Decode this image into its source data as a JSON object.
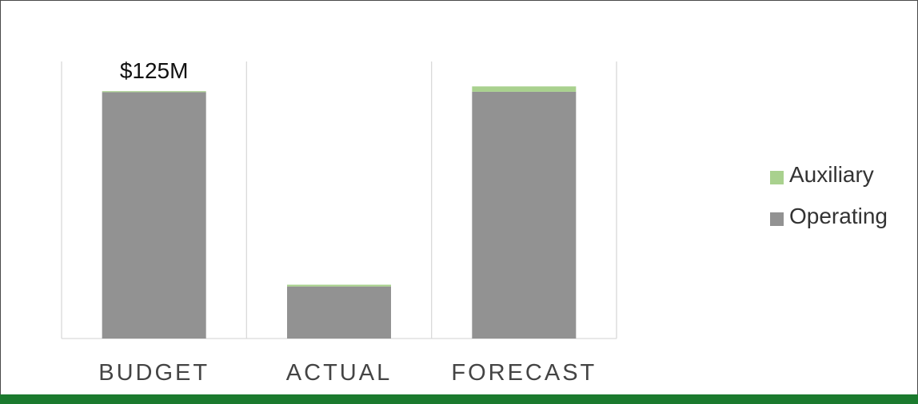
{
  "chart_data": {
    "type": "bar",
    "stacked": true,
    "categories": [
      "BUDGET",
      "ACTUAL",
      "FORECAST"
    ],
    "series": [
      {
        "name": "Operating",
        "values": [
          124.5,
          26.3,
          124.7
        ],
        "color": "#929292"
      },
      {
        "name": "Auxiliary",
        "values": [
          0.5,
          0.9,
          2.7
        ],
        "color": "#a9d18e"
      }
    ],
    "data_labels": [
      {
        "category": "BUDGET",
        "text": "$125M"
      }
    ],
    "ylim": [
      0,
      140
    ],
    "grid": "vertical category separators",
    "legend_position": "right"
  }
}
